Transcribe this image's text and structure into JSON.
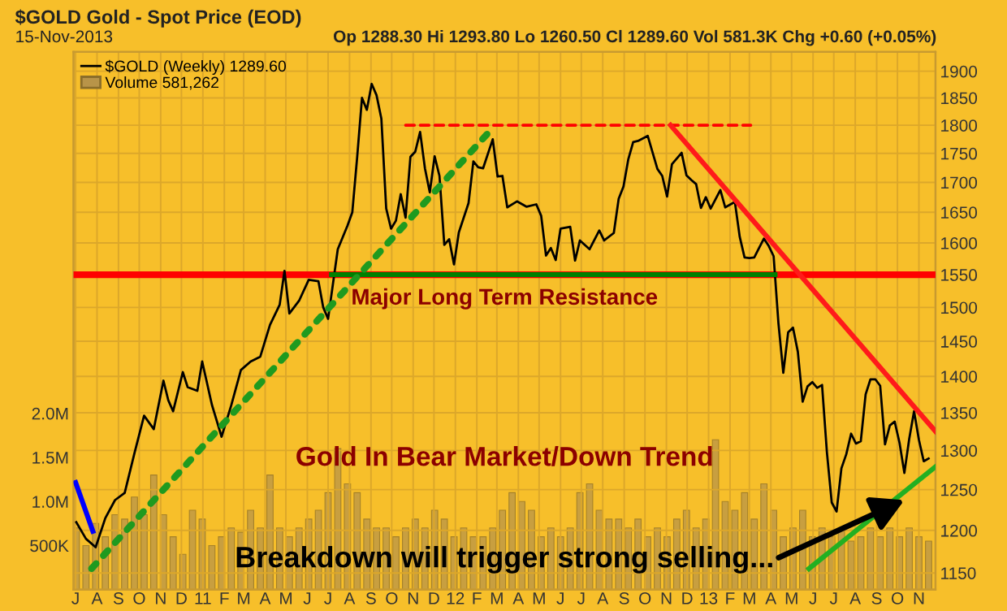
{
  "chart_data": {
    "type": "line",
    "title": "$GOLD Gold - Spot Price (EOD)",
    "subtitle": "15-Nov-2013",
    "annotations": [
      "Op 1288.30 Hi 1293.80 Lo 1260.50 Cl 1289.60 Vol 581.3K Chg +0.60 (+0.05%)",
      "Gold In Bear Market/Down Trend",
      {
        "text": "Breakdown will trigger strong selling...",
        "x": "2013-10-11",
        "y": 1237
      }
    ],
    "log": "y",
    "grid": true,
    "legend": "top left",
    "xlim": [
      "2010-06-28",
      "2013-11-25"
    ],
    "xticks": [
      {
        "value": "2010-07-01",
        "label": "J"
      },
      {
        "value": "2010-08-01",
        "label": "A"
      },
      {
        "value": "2010-09-01",
        "label": "S"
      },
      {
        "value": "2010-10-01",
        "label": "O"
      },
      {
        "value": "2010-11-01",
        "label": "N"
      },
      {
        "value": "2010-12-01",
        "label": "D"
      },
      {
        "value": "2011-01-01",
        "label": "11"
      },
      {
        "value": "2011-02-01",
        "label": "F"
      },
      {
        "value": "2011-03-01",
        "label": "M"
      },
      {
        "value": "2011-04-01",
        "label": "A"
      },
      {
        "value": "2011-05-01",
        "label": "M"
      },
      {
        "value": "2011-06-01",
        "label": "J"
      },
      {
        "value": "2011-07-01",
        "label": "J"
      },
      {
        "value": "2011-08-01",
        "label": "A"
      },
      {
        "value": "2011-09-01",
        "label": "S"
      },
      {
        "value": "2011-10-01",
        "label": "O"
      },
      {
        "value": "2011-11-01",
        "label": "N"
      },
      {
        "value": "2011-12-01",
        "label": "D"
      },
      {
        "value": "2012-01-01",
        "label": "12"
      },
      {
        "value": "2012-02-01",
        "label": "F"
      },
      {
        "value": "2012-03-01",
        "label": "M"
      },
      {
        "value": "2012-04-01",
        "label": "A"
      },
      {
        "value": "2012-05-01",
        "label": "M"
      },
      {
        "value": "2012-06-01",
        "label": "J"
      },
      {
        "value": "2012-07-01",
        "label": "J"
      },
      {
        "value": "2012-08-01",
        "label": "A"
      },
      {
        "value": "2012-09-01",
        "label": "S"
      },
      {
        "value": "2012-10-01",
        "label": "O"
      },
      {
        "value": "2012-11-01",
        "label": "N"
      },
      {
        "value": "2012-12-01",
        "label": "D"
      },
      {
        "value": "2013-01-01",
        "label": "13"
      },
      {
        "value": "2013-02-01",
        "label": "F"
      },
      {
        "value": "2013-03-01",
        "label": "M"
      },
      {
        "value": "2013-04-01",
        "label": "A"
      },
      {
        "value": "2013-05-01",
        "label": "M"
      },
      {
        "value": "2013-06-01",
        "label": "J"
      },
      {
        "value": "2013-07-01",
        "label": "J"
      },
      {
        "value": "2013-08-01",
        "label": "A"
      },
      {
        "value": "2013-09-01",
        "label": "S"
      },
      {
        "value": "2013-10-01",
        "label": "O"
      },
      {
        "value": "2013-11-01",
        "label": "N"
      }
    ],
    "ylim": [
      1131,
      1937
    ],
    "yticks": [
      1150,
      1200,
      1250,
      1300,
      1350,
      1400,
      1450,
      1500,
      1550,
      1600,
      1650,
      1700,
      1750,
      1800,
      1850,
      1900
    ],
    "y2lim": [
      0,
      6100000
    ],
    "y2ticks": [
      {
        "value": 500000,
        "label": "500K"
      },
      {
        "value": 1000000,
        "label": "1.0M"
      },
      {
        "value": 1500000,
        "label": "1.5M"
      },
      {
        "value": 2000000,
        "label": "2.0M"
      }
    ],
    "ref_lines": [
      {
        "axis": "y",
        "value": 1550,
        "label": "Major Long Term Resistance",
        "color": "#ff0000"
      }
    ],
    "series": [
      {
        "name": "$GOLD (Weekly) 1289.60",
        "color": "#000000",
        "x": [
          "2010-07-02",
          "2010-07-16",
          "2010-07-30",
          "2010-08-13",
          "2010-08-27",
          "2010-09-10",
          "2010-09-24",
          "2010-10-08",
          "2010-10-22",
          "2010-11-05",
          "2010-11-12",
          "2010-11-19",
          "2010-12-03",
          "2010-12-10",
          "2010-12-24",
          "2010-12-31",
          "2011-01-14",
          "2011-01-28",
          "2011-02-11",
          "2011-02-25",
          "2011-03-11",
          "2011-03-25",
          "2011-04-08",
          "2011-04-22",
          "2011-04-29",
          "2011-05-06",
          "2011-05-20",
          "2011-06-03",
          "2011-06-17",
          "2011-06-24",
          "2011-07-01",
          "2011-07-15",
          "2011-07-29",
          "2011-08-05",
          "2011-08-12",
          "2011-08-19",
          "2011-08-26",
          "2011-09-02",
          "2011-09-09",
          "2011-09-16",
          "2011-09-23",
          "2011-09-30",
          "2011-10-07",
          "2011-10-14",
          "2011-10-21",
          "2011-10-28",
          "2011-11-04",
          "2011-11-11",
          "2011-11-18",
          "2011-11-25",
          "2011-12-02",
          "2011-12-09",
          "2011-12-16",
          "2011-12-23",
          "2011-12-30",
          "2012-01-06",
          "2012-01-20",
          "2012-01-27",
          "2012-02-03",
          "2012-02-10",
          "2012-02-24",
          "2012-03-02",
          "2012-03-09",
          "2012-03-16",
          "2012-03-30",
          "2012-04-13",
          "2012-04-27",
          "2012-05-04",
          "2012-05-11",
          "2012-05-18",
          "2012-05-25",
          "2012-06-01",
          "2012-06-15",
          "2012-06-22",
          "2012-06-29",
          "2012-07-13",
          "2012-07-27",
          "2012-08-03",
          "2012-08-17",
          "2012-08-24",
          "2012-08-31",
          "2012-09-07",
          "2012-09-14",
          "2012-09-21",
          "2012-10-05",
          "2012-10-19",
          "2012-10-26",
          "2012-11-02",
          "2012-11-09",
          "2012-11-23",
          "2012-11-30",
          "2012-12-07",
          "2012-12-14",
          "2012-12-21",
          "2012-12-28",
          "2013-01-04",
          "2013-01-18",
          "2013-01-25",
          "2013-02-08",
          "2013-02-15",
          "2013-02-22",
          "2013-03-01",
          "2013-03-08",
          "2013-03-15",
          "2013-03-22",
          "2013-03-29",
          "2013-04-05",
          "2013-04-12",
          "2013-04-19",
          "2013-04-26",
          "2013-05-03",
          "2013-05-10",
          "2013-05-17",
          "2013-05-24",
          "2013-05-31",
          "2013-06-07",
          "2013-06-14",
          "2013-06-21",
          "2013-06-28",
          "2013-07-05",
          "2013-07-12",
          "2013-07-19",
          "2013-07-26",
          "2013-08-02",
          "2013-08-09",
          "2013-08-16",
          "2013-08-23",
          "2013-08-30",
          "2013-09-06",
          "2013-09-13",
          "2013-09-20",
          "2013-09-27",
          "2013-10-04",
          "2013-10-11",
          "2013-10-18",
          "2013-10-25",
          "2013-11-01",
          "2013-11-08",
          "2013-11-15"
        ],
        "values": [
          1210,
          1190,
          1180,
          1215,
          1237,
          1246,
          1296,
          1346,
          1328,
          1394,
          1367,
          1352,
          1406,
          1385,
          1380,
          1421,
          1361,
          1318,
          1360,
          1409,
          1421,
          1428,
          1474,
          1504,
          1556,
          1491,
          1510,
          1542,
          1540,
          1500,
          1483,
          1590,
          1628,
          1650,
          1743,
          1850,
          1828,
          1876,
          1855,
          1812,
          1656,
          1623,
          1636,
          1680,
          1641,
          1744,
          1753,
          1788,
          1724,
          1683,
          1745,
          1711,
          1597,
          1606,
          1566,
          1617,
          1665,
          1736,
          1726,
          1724,
          1775,
          1710,
          1711,
          1658,
          1668,
          1659,
          1663,
          1644,
          1580,
          1592,
          1573,
          1623,
          1626,
          1572,
          1604,
          1590,
          1620,
          1604,
          1616,
          1672,
          1693,
          1740,
          1770,
          1772,
          1781,
          1723,
          1711,
          1676,
          1731,
          1751,
          1712,
          1704,
          1697,
          1657,
          1675,
          1656,
          1687,
          1658,
          1667,
          1610,
          1577,
          1576,
          1577,
          1592,
          1607,
          1595,
          1579,
          1476,
          1405,
          1463,
          1470,
          1435,
          1365,
          1386,
          1392,
          1384,
          1388,
          1298,
          1234,
          1223,
          1277,
          1295,
          1322,
          1309,
          1312,
          1375,
          1396,
          1396,
          1387,
          1308,
          1333,
          1338,
          1310,
          1271,
          1315,
          1352,
          1314,
          1286,
          1289.6
        ]
      },
      {
        "name": "Volume 581,262",
        "type": "bar",
        "axis": "y2",
        "color": "#b89448",
        "x": [
          "2010-07-02",
          "2010-07-16",
          "2010-07-30",
          "2010-08-13",
          "2010-08-27",
          "2010-09-10",
          "2010-09-24",
          "2010-10-08",
          "2010-10-22",
          "2010-11-05",
          "2010-11-19",
          "2010-12-03",
          "2010-12-17",
          "2010-12-31",
          "2011-01-14",
          "2011-01-28",
          "2011-02-11",
          "2011-02-25",
          "2011-03-11",
          "2011-03-25",
          "2011-04-08",
          "2011-04-22",
          "2011-05-06",
          "2011-05-20",
          "2011-06-03",
          "2011-06-17",
          "2011-07-01",
          "2011-07-15",
          "2011-07-29",
          "2011-08-12",
          "2011-08-26",
          "2011-09-09",
          "2011-09-23",
          "2011-10-07",
          "2011-10-21",
          "2011-11-04",
          "2011-11-18",
          "2011-12-02",
          "2011-12-16",
          "2011-12-30",
          "2012-01-13",
          "2012-01-27",
          "2012-02-10",
          "2012-02-24",
          "2012-03-09",
          "2012-03-23",
          "2012-04-06",
          "2012-04-20",
          "2012-05-04",
          "2012-05-18",
          "2012-06-01",
          "2012-06-15",
          "2012-06-29",
          "2012-07-13",
          "2012-07-27",
          "2012-08-10",
          "2012-08-24",
          "2012-09-07",
          "2012-09-21",
          "2012-10-05",
          "2012-10-19",
          "2012-11-02",
          "2012-11-16",
          "2012-11-30",
          "2012-12-14",
          "2012-12-28",
          "2013-01-11",
          "2013-01-25",
          "2013-02-08",
          "2013-02-22",
          "2013-03-08",
          "2013-03-22",
          "2013-04-05",
          "2013-04-19",
          "2013-05-03",
          "2013-05-17",
          "2013-05-31",
          "2013-06-14",
          "2013-06-28",
          "2013-07-12",
          "2013-07-26",
          "2013-08-09",
          "2013-08-23",
          "2013-09-06",
          "2013-09-20",
          "2013-10-04",
          "2013-10-18",
          "2013-11-01",
          "2013-11-15"
        ],
        "values": [
          700000,
          500000,
          750000,
          600000,
          850000,
          800000,
          1050000,
          850000,
          1300000,
          850000,
          600000,
          400000,
          900000,
          800000,
          500000,
          600000,
          700000,
          650000,
          900000,
          700000,
          1300000,
          700000,
          600000,
          700000,
          800000,
          900000,
          1100000,
          1600000,
          1200000,
          1100000,
          800000,
          700000,
          700000,
          600000,
          700000,
          800000,
          700000,
          900000,
          800000,
          600000,
          700000,
          600000,
          600000,
          700000,
          900000,
          1100000,
          1000000,
          900000,
          600000,
          700000,
          600000,
          700000,
          1100000,
          1200000,
          900000,
          800000,
          800000,
          700000,
          800000,
          600000,
          700000,
          600000,
          800000,
          900000,
          700000,
          800000,
          1700000,
          1000000,
          900000,
          1100000,
          800000,
          1200000,
          900000,
          600000,
          700000,
          900000,
          600000,
          700000,
          600000,
          700000,
          550000,
          600000,
          700000,
          600000,
          700000,
          600000,
          700000,
          600000,
          550000
        ]
      },
      {
        "color": "#008000",
        "x": [
          "2011-07-06",
          "2013-04-07"
        ],
        "values": [
          1550,
          1550
        ]
      },
      {
        "color": "#ff0000",
        "line_style": "dashed",
        "x": [
          "2011-10-21",
          "2013-03-03"
        ],
        "values": [
          1800,
          1800
        ]
      },
      {
        "color": "#1f9a1f",
        "line_style": "dotted",
        "x": [
          "2010-07-24",
          "2012-02-18"
        ],
        "values": [
          1155,
          1787
        ]
      },
      {
        "color": "#ff1a1a",
        "x": [
          "2012-11-07",
          "2013-11-25"
        ],
        "values": [
          1800,
          1325
        ]
      },
      {
        "color": "#22b022",
        "x": [
          "2013-05-26",
          "2013-11-25"
        ],
        "values": [
          1155,
          1279
        ]
      },
      {
        "color": "#0000ff",
        "x": [
          "2010-07-01",
          "2010-07-26"
        ],
        "values": [
          1259,
          1199
        ]
      }
    ]
  }
}
